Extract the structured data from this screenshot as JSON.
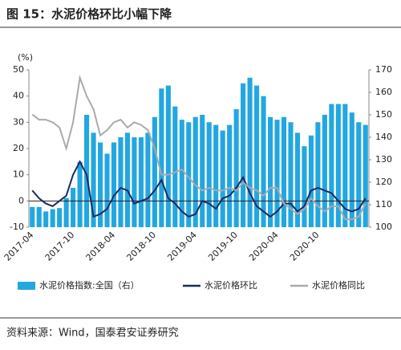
{
  "chart_data": {
    "type": "bar-line",
    "title": "图 15：水泥价格环比小幅下降",
    "unit": "(%)",
    "source": "资料来源：Wind，国泰君安证券研究",
    "categories": [
      "2017-04",
      null,
      null,
      null,
      null,
      null,
      "2017-10",
      null,
      null,
      null,
      null,
      null,
      "2018-04",
      null,
      null,
      null,
      null,
      null,
      "2018-10",
      null,
      null,
      null,
      null,
      null,
      "2019-04",
      null,
      null,
      null,
      null,
      null,
      "2019-10",
      null,
      null,
      null,
      null,
      null,
      "2020-04",
      null,
      null,
      null,
      null,
      null,
      "2020-10",
      null,
      null,
      null,
      null,
      null,
      null,
      null
    ],
    "series": [
      {
        "name": "水泥价格指数:全国（右）",
        "color": "#22a7e0",
        "kind": "bar",
        "axis": "y2",
        "values": [
          109,
          109,
          107,
          108,
          108.5,
          113,
          117.5,
          129,
          150,
          142,
          137.7,
          132.7,
          137.7,
          140,
          142,
          140,
          140,
          142,
          149,
          161.7,
          163,
          153.7,
          147.8,
          146.7,
          149,
          150,
          146.7,
          145.5,
          143,
          145.5,
          152.5,
          164,
          166.5,
          163,
          158.3,
          149,
          147.8,
          149,
          146.7,
          142,
          136,
          140.8,
          146.7,
          150,
          154.8,
          154.8,
          154.8,
          151,
          146.7,
          145.5
        ]
      },
      {
        "name": "水泥价格环比",
        "color": "#1b2a5e",
        "kind": "line",
        "values": [
          4,
          1,
          -1,
          -2,
          0,
          2,
          10,
          15,
          10,
          -6,
          -5,
          -3,
          2,
          5,
          4,
          -1,
          0,
          1,
          4,
          8,
          1,
          -1,
          -4,
          -6,
          -5,
          0,
          -1,
          -3,
          1,
          2,
          5,
          9,
          3,
          -2,
          -4,
          -6,
          -4,
          -1,
          -1,
          -4,
          -2,
          4,
          5,
          4,
          3,
          0,
          -3,
          -4,
          -3,
          1
        ]
      },
      {
        "name": "水泥价格同比",
        "color": "#aaaaaa",
        "kind": "line",
        "values": [
          33,
          31,
          31,
          30,
          28,
          20,
          30,
          47,
          40,
          35,
          25,
          27,
          30,
          31,
          28,
          30,
          29,
          27,
          20,
          10,
          10,
          11,
          12,
          9,
          6,
          4,
          5,
          4,
          4,
          5,
          4,
          7,
          5,
          4,
          2,
          5,
          5,
          -1,
          -3,
          -5,
          -3,
          1,
          -2,
          -4,
          -2,
          -2,
          -7,
          -7,
          -6,
          -1
        ]
      }
    ],
    "ylim": [
      -10,
      50
    ],
    "yticks": [
      -10,
      0,
      10,
      20,
      30,
      40,
      50
    ],
    "y2lim": [
      100,
      170
    ],
    "y2ticks": [
      100,
      110,
      120,
      130,
      140,
      150,
      160,
      170
    ]
  }
}
